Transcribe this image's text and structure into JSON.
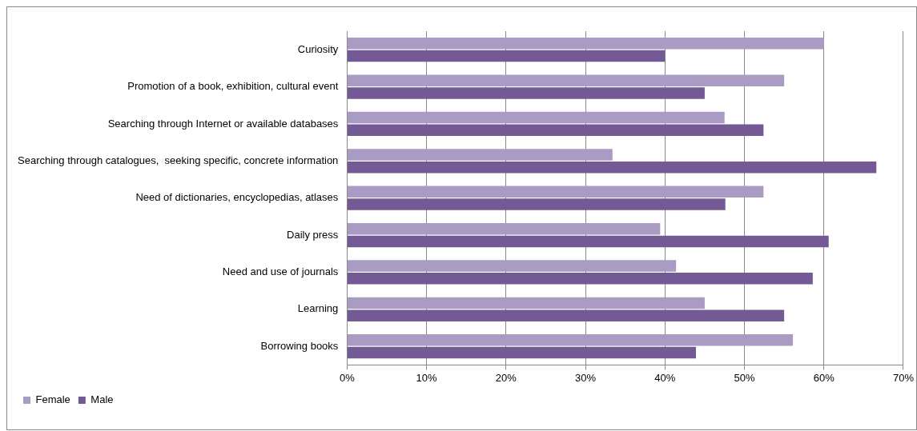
{
  "chart_data": {
    "type": "bar",
    "orientation": "horizontal",
    "categories": [
      "Curiosity",
      "Promotion of a book, exhibition, cultural event",
      "Searching through Internet or available databases",
      "Searching through catalogues,  seeking specific, concrete information",
      "Need of dictionaries, encyclopedias, atlases",
      "Daily press",
      "Need and use of journals",
      "Learning",
      "Borrowing books"
    ],
    "series": [
      {
        "name": "Female",
        "color": "#a99bc3",
        "values": [
          60,
          55,
          47.5,
          33.4,
          52.4,
          39.4,
          41.4,
          45,
          56.1
        ]
      },
      {
        "name": "Male",
        "color": "#735a95",
        "values": [
          40,
          45,
          52.4,
          66.6,
          47.6,
          60.6,
          58.6,
          55,
          43.9
        ]
      }
    ],
    "xlim": [
      0,
      70
    ],
    "xticks": [
      {
        "value": 0,
        "label": "0%"
      },
      {
        "value": 10,
        "label": "10%"
      },
      {
        "value": 20,
        "label": "20%"
      },
      {
        "value": 30,
        "label": "30%"
      },
      {
        "value": 40,
        "label": "40%"
      },
      {
        "value": 50,
        "label": "50%"
      },
      {
        "value": 60,
        "label": "60%"
      },
      {
        "value": 70,
        "label": "70%"
      }
    ],
    "grid": "x",
    "legend": "bottom left"
  }
}
